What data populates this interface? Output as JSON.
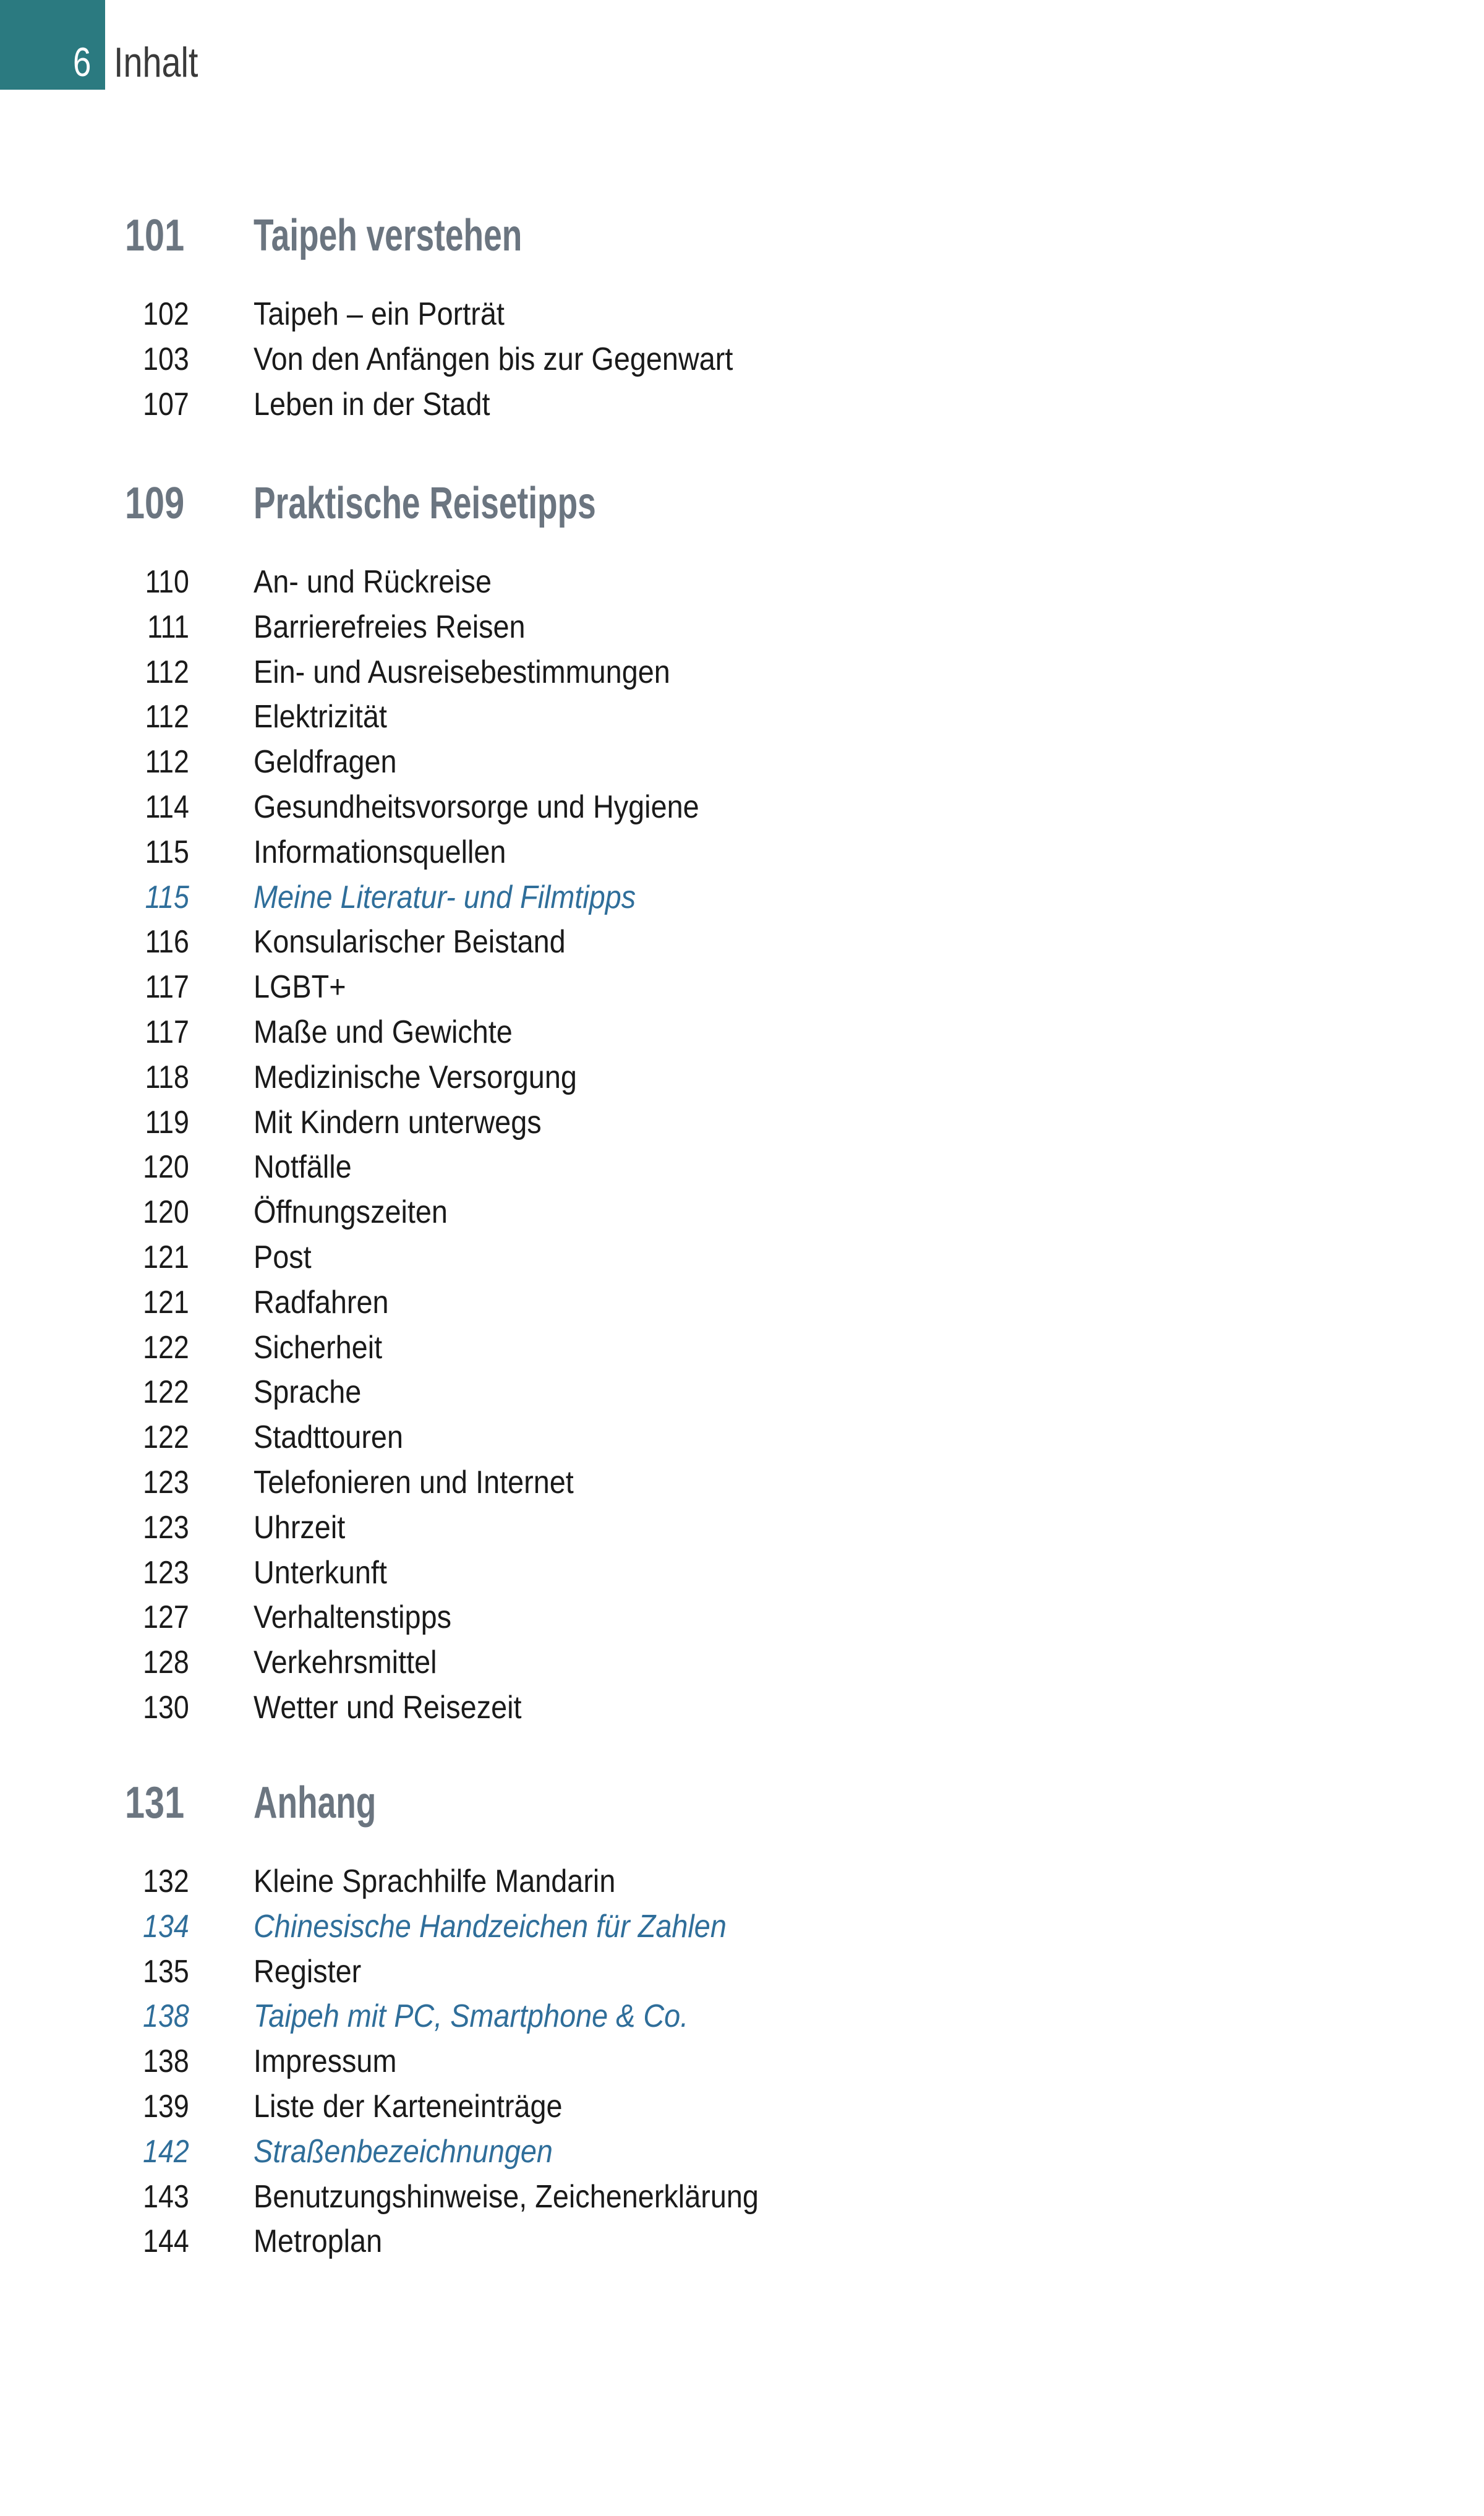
{
  "header": {
    "page_number": "6",
    "title": "Inhalt"
  },
  "colors": {
    "accent": "#2b7a80",
    "heading": "#6b7580",
    "highlight": "#2f6e9a",
    "text": "#1a1a1a"
  },
  "sections": [
    {
      "page": "101",
      "title": "Taipeh verstehen",
      "entries": [
        {
          "page": "102",
          "title": "Taipeh – ein Porträt"
        },
        {
          "page": "103",
          "title": "Von den Anfängen bis zur Gegenwart"
        },
        {
          "page": "107",
          "title": "Leben in der Stadt"
        }
      ]
    },
    {
      "page": "109",
      "title": "Praktische Reisetipps",
      "entries": [
        {
          "page": "110",
          "title": "An- und Rückreise"
        },
        {
          "page": "111",
          "title": "Barrierefreies Reisen"
        },
        {
          "page": "112",
          "title": "Ein- und Ausreisebestimmungen"
        },
        {
          "page": "112",
          "title": "Elektrizität"
        },
        {
          "page": "112",
          "title": "Geldfragen"
        },
        {
          "page": "114",
          "title": "Gesundheitsvorsorge und Hygiene"
        },
        {
          "page": "115",
          "title": "Informationsquellen"
        },
        {
          "page": "115",
          "title": "Meine Literatur- und Filmtipps",
          "highlight": true
        },
        {
          "page": "116",
          "title": "Konsularischer Beistand"
        },
        {
          "page": "117",
          "title": "LGBT+"
        },
        {
          "page": "117",
          "title": "Maße und Gewichte"
        },
        {
          "page": "118",
          "title": "Medizinische Versorgung"
        },
        {
          "page": "119",
          "title": "Mit Kindern unterwegs"
        },
        {
          "page": "120",
          "title": "Notfälle"
        },
        {
          "page": "120",
          "title": "Öffnungszeiten"
        },
        {
          "page": "121",
          "title": "Post"
        },
        {
          "page": "121",
          "title": "Radfahren"
        },
        {
          "page": "122",
          "title": "Sicherheit"
        },
        {
          "page": "122",
          "title": "Sprache"
        },
        {
          "page": "122",
          "title": "Stadttouren"
        },
        {
          "page": "123",
          "title": "Telefonieren und Internet"
        },
        {
          "page": "123",
          "title": "Uhrzeit"
        },
        {
          "page": "123",
          "title": "Unterkunft"
        },
        {
          "page": "127",
          "title": "Verhaltenstipps"
        },
        {
          "page": "128",
          "title": "Verkehrsmittel"
        },
        {
          "page": "130",
          "title": "Wetter und Reisezeit"
        }
      ]
    },
    {
      "page": "131",
      "title": "Anhang",
      "entries": [
        {
          "page": "132",
          "title": "Kleine Sprachhilfe Mandarin"
        },
        {
          "page": "134",
          "title": "Chinesische Handzeichen für Zahlen",
          "highlight": true
        },
        {
          "page": "135",
          "title": "Register"
        },
        {
          "page": "138",
          "title": "Taipeh mit PC, Smartphone & Co.",
          "highlight": true
        },
        {
          "page": "138",
          "title": "Impressum"
        },
        {
          "page": "139",
          "title": "Liste der Karteneinträge"
        },
        {
          "page": "142",
          "title": "Straßenbezeichnungen",
          "highlight": true
        },
        {
          "page": "143",
          "title": "Benutzungshinweise, Zeichenerklärung"
        },
        {
          "page": "144",
          "title": "Metroplan"
        }
      ]
    }
  ]
}
